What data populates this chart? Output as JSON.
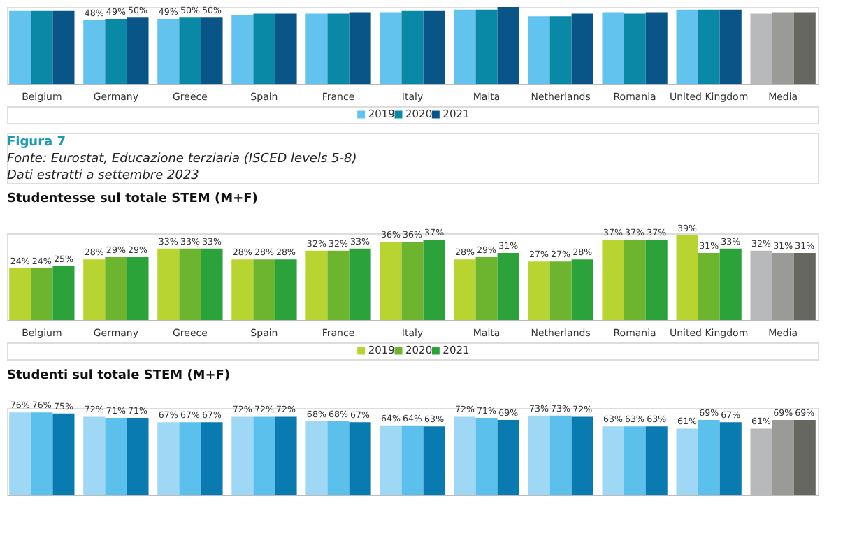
{
  "chart_data": [
    {
      "type": "bar",
      "categories": [
        "Belgium",
        "Germany",
        "Greece",
        "Spain",
        "France",
        "Italy",
        "Malta",
        "Netherlands",
        "Romania",
        "United Kingdom",
        "Media"
      ],
      "ylim": [
        0,
        58
      ],
      "tick_labels": "x",
      "legend": "bottom",
      "series": [
        {
          "name": "2019",
          "color": "#62c3ee",
          "colors": [
            null,
            null,
            null,
            null,
            null,
            null,
            null,
            null,
            null,
            null,
            "#b8b9bb"
          ],
          "values": [
            55,
            48,
            49,
            52,
            53,
            54,
            56,
            51,
            54,
            56,
            53
          ],
          "value_labels": [
            null,
            "48%",
            "49%",
            null,
            null,
            null,
            null,
            null,
            null,
            null,
            null
          ]
        },
        {
          "name": "2020",
          "color": "#0a89a6",
          "colors": [
            null,
            null,
            null,
            null,
            null,
            null,
            null,
            null,
            null,
            null,
            "#9a9a96"
          ],
          "values": [
            55,
            49,
            50,
            53,
            53,
            55,
            56,
            51,
            53,
            56,
            54
          ],
          "value_labels": [
            null,
            "49%",
            "50%",
            null,
            null,
            null,
            null,
            null,
            null,
            null,
            null
          ]
        },
        {
          "name": "2021",
          "color": "#0a5587",
          "colors": [
            null,
            null,
            null,
            null,
            null,
            null,
            null,
            null,
            null,
            null,
            "#66675f"
          ],
          "values": [
            55,
            50,
            50,
            53,
            54,
            55,
            58,
            53,
            54,
            56,
            54
          ],
          "value_labels": [
            null,
            "50%",
            "50%",
            null,
            null,
            null,
            null,
            null,
            null,
            null,
            null
          ]
        }
      ]
    },
    {
      "type": "bar",
      "title": "Studentesse sul totale STEM (M+F)",
      "annotations": [
        "Figura 7",
        "Fonte: Eurostat, Educazione terziaria (ISCED levels 5-8)",
        "Dati estratti a settembre 2023"
      ],
      "categories": [
        "Belgium",
        "Germany",
        "Greece",
        "Spain",
        "France",
        "Italy",
        "Malta",
        "Netherlands",
        "Romania",
        "United Kingdom",
        "Media"
      ],
      "ylim": [
        0,
        40
      ],
      "tick_labels": "x",
      "legend": "bottom",
      "series": [
        {
          "name": "2019",
          "color": "#b8d430",
          "colors": [
            null,
            null,
            null,
            null,
            null,
            null,
            null,
            null,
            null,
            null,
            "#b8b9bb"
          ],
          "values": [
            24,
            28,
            33,
            28,
            32,
            36,
            28,
            27,
            37,
            39,
            32
          ],
          "value_labels": [
            "24%",
            "28%",
            "33%",
            "28%",
            "32%",
            "36%",
            "28%",
            "27%",
            "37%",
            "39%",
            "32%"
          ]
        },
        {
          "name": "2020",
          "color": "#6db52e",
          "colors": [
            null,
            null,
            null,
            null,
            null,
            null,
            null,
            null,
            null,
            null,
            "#9a9a96"
          ],
          "values": [
            24,
            29,
            33,
            28,
            32,
            36,
            29,
            27,
            37,
            31,
            31
          ],
          "value_labels": [
            "24%",
            "29%",
            "33%",
            "28%",
            "32%",
            "36%",
            "29%",
            "27%",
            "37%",
            "31%",
            "31%"
          ]
        },
        {
          "name": "2021",
          "color": "#2ca33a",
          "colors": [
            null,
            null,
            null,
            null,
            null,
            null,
            null,
            null,
            null,
            null,
            "#66675f"
          ],
          "values": [
            25,
            29,
            33,
            28,
            33,
            37,
            31,
            28,
            37,
            33,
            31
          ],
          "value_labels": [
            "25%",
            "29%",
            "33%",
            "28%",
            "33%",
            "37%",
            "31%",
            "28%",
            "37%",
            "33%",
            "31%"
          ]
        }
      ]
    },
    {
      "type": "bar",
      "title": "Studenti sul totale STEM (M+F)",
      "categories": [
        null,
        null,
        null,
        null,
        null,
        null,
        null,
        null,
        null,
        null,
        null
      ],
      "ylim": [
        0,
        80
      ],
      "tick_labels": false,
      "series": [
        {
          "color": "#9fd8f5",
          "colors": [
            null,
            null,
            null,
            null,
            null,
            null,
            null,
            null,
            null,
            null,
            "#b8b9bb"
          ],
          "values": [
            76,
            72,
            67,
            72,
            68,
            64,
            72,
            73,
            63,
            61,
            61
          ],
          "value_labels": [
            "76%",
            "72%",
            "67%",
            "72%",
            "68%",
            "64%",
            "72%",
            "73%",
            "63%",
            "61%",
            "61%"
          ]
        },
        {
          "color": "#5bc0ec",
          "colors": [
            null,
            null,
            null,
            null,
            null,
            null,
            null,
            null,
            null,
            null,
            "#9a9a96"
          ],
          "values": [
            76,
            71,
            67,
            72,
            68,
            64,
            71,
            73,
            63,
            69,
            69
          ],
          "value_labels": [
            "76%",
            "71%",
            "67%",
            "72%",
            "68%",
            "64%",
            "71%",
            "73%",
            "63%",
            "69%",
            "69%"
          ]
        },
        {
          "color": "#0a7bb0",
          "colors": [
            null,
            null,
            null,
            null,
            null,
            null,
            null,
            null,
            null,
            null,
            "#66675f"
          ],
          "values": [
            75,
            71,
            67,
            72,
            67,
            63,
            69,
            72,
            63,
            67,
            69
          ],
          "value_labels": [
            "75%",
            "71%",
            "67%",
            "72%",
            "67%",
            "63%",
            "69%",
            "72%",
            "63%",
            "67%",
            "69%"
          ]
        }
      ]
    }
  ]
}
